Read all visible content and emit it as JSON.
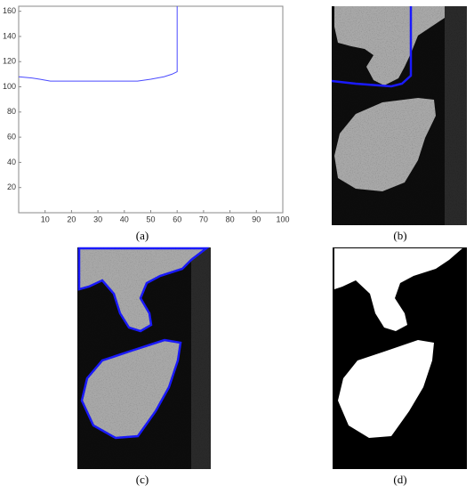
{
  "chart_data": {
    "type": "line",
    "x": [
      0,
      5,
      8,
      12,
      20,
      30,
      40,
      45,
      50,
      55,
      58,
      60,
      60
    ],
    "series": [
      {
        "color": "#4a4aff",
        "values": [
          108,
          107,
          106,
          104.5,
          104.5,
          104.5,
          104.5,
          104.5,
          106,
          108,
          110,
          112,
          164
        ]
      }
    ],
    "xlim": [
      0,
      100
    ],
    "ylim": [
      0,
      164
    ],
    "xticks": [
      10,
      20,
      30,
      40,
      50,
      60,
      70,
      80,
      90,
      100
    ],
    "yticks": [
      20,
      40,
      60,
      80,
      100,
      120,
      140,
      160
    ]
  },
  "captions": [
    "(a)",
    "(b)",
    "(c)",
    "(d)"
  ]
}
